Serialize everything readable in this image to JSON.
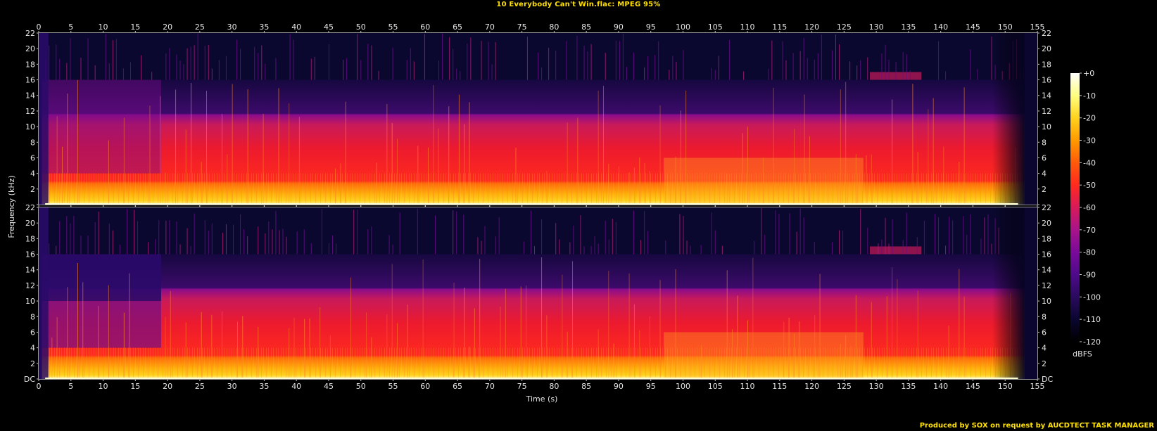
{
  "title": "10 Everybody Can't Win.flac: MPEG 95%",
  "credit": "Produced by SOX on request by AUCDTECT TASK MANAGER",
  "chart_data": {
    "type": "heatmap",
    "subtype": "spectrogram",
    "channels": 2,
    "xlabel": "Time (s)",
    "ylabel": "Frequency (kHz)",
    "xlim": [
      0,
      155
    ],
    "ylim": [
      0,
      22
    ],
    "x_ticks": [
      0,
      5,
      10,
      15,
      20,
      25,
      30,
      35,
      40,
      45,
      50,
      55,
      60,
      65,
      70,
      75,
      80,
      85,
      90,
      95,
      100,
      105,
      110,
      115,
      120,
      125,
      130,
      135,
      140,
      145,
      150,
      155
    ],
    "y_tick_values": [
      0,
      2,
      4,
      6,
      8,
      10,
      12,
      14,
      16,
      18,
      20,
      22
    ],
    "y_tick_labels": [
      "DC",
      "2",
      "4",
      "6",
      "8",
      "10",
      "12",
      "14",
      "16",
      "18",
      "20",
      "22"
    ],
    "top_channel_y_tick_labels": [
      "",
      "2",
      "4",
      "6",
      "8",
      "10",
      "12",
      "14",
      "16",
      "18",
      "20",
      "22"
    ],
    "colorbar": {
      "label": "dBFS",
      "range": [
        -120,
        0
      ],
      "ticks": [
        0,
        -10,
        -20,
        -30,
        -40,
        -50,
        -60,
        -70,
        -80,
        -90,
        -100,
        -110,
        -120
      ],
      "tick_labels": [
        "+0",
        "-10",
        "-20",
        "-30",
        "-40",
        "-50",
        "-60",
        "-70",
        "-80",
        "-90",
        "-100",
        "-110",
        "-120"
      ],
      "colors": [
        "#000000",
        "#0a0630",
        "#2a0a5e",
        "#4e0a8a",
        "#7a0a9a",
        "#a8148a",
        "#d81a5a",
        "#ff2a1e",
        "#ff5a0a",
        "#ff9a00",
        "#ffd21e",
        "#ffff80",
        "#ffffff"
      ]
    },
    "track_duration_s": 153,
    "lowpass_cutoff_khz": 16
  }
}
